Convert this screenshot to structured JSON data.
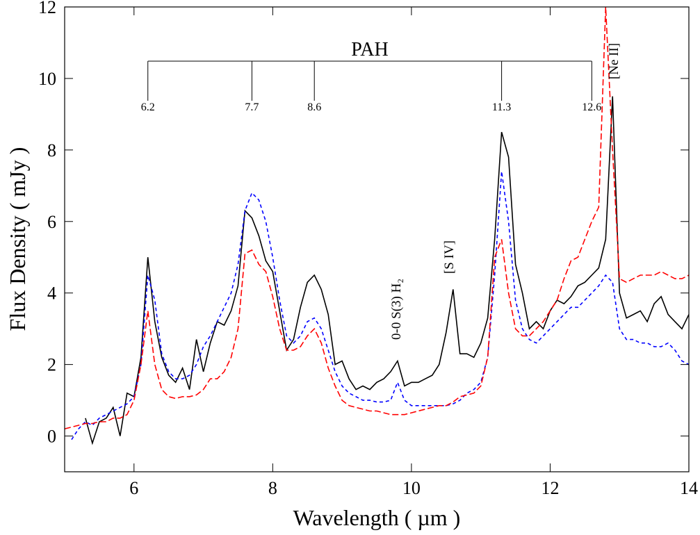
{
  "chart_data": {
    "type": "line",
    "xlabel": "Wavelength ( µm )",
    "ylabel": "Flux Density ( mJy )",
    "xlim": [
      5,
      14
    ],
    "ylim": [
      -1,
      12
    ],
    "xticks": [
      6,
      8,
      10,
      12,
      14
    ],
    "yticks": [
      0,
      2,
      4,
      6,
      8,
      10,
      12
    ],
    "pah_label": "PAH",
    "pah_features": [
      6.2,
      7.7,
      8.6,
      11.3,
      12.6
    ],
    "line_labels": [
      "[Ne II]",
      "[S IV]",
      "0-0 S(3) H₂"
    ],
    "x": [
      5.0,
      5.1,
      5.2,
      5.3,
      5.4,
      5.5,
      5.6,
      5.7,
      5.8,
      5.9,
      6.0,
      6.1,
      6.2,
      6.3,
      6.4,
      6.5,
      6.6,
      6.7,
      6.8,
      6.9,
      7.0,
      7.1,
      7.2,
      7.3,
      7.4,
      7.5,
      7.6,
      7.7,
      7.8,
      7.9,
      8.0,
      8.1,
      8.2,
      8.3,
      8.4,
      8.5,
      8.6,
      8.7,
      8.8,
      8.9,
      9.0,
      9.1,
      9.2,
      9.3,
      9.4,
      9.5,
      9.6,
      9.7,
      9.8,
      9.9,
      10.0,
      10.1,
      10.2,
      10.3,
      10.4,
      10.5,
      10.6,
      10.7,
      10.8,
      10.9,
      11.0,
      11.1,
      11.2,
      11.3,
      11.4,
      11.5,
      11.6,
      11.7,
      11.8,
      11.9,
      12.0,
      12.1,
      12.2,
      12.3,
      12.4,
      12.5,
      12.6,
      12.7,
      12.8,
      12.9,
      13.0,
      13.1,
      13.2,
      13.3,
      13.4,
      13.5,
      13.6,
      13.7,
      13.8,
      13.9,
      14.0
    ],
    "series": [
      {
        "color": "#000000",
        "linestyle": "solid",
        "values": [
          null,
          null,
          null,
          0.5,
          -0.2,
          0.4,
          0.5,
          0.8,
          0.0,
          1.2,
          1.1,
          2.2,
          5.0,
          3.2,
          2.2,
          1.7,
          1.5,
          1.9,
          1.3,
          2.7,
          1.8,
          2.6,
          3.2,
          3.1,
          3.5,
          4.2,
          6.3,
          6.1,
          5.6,
          4.9,
          4.6,
          3.5,
          2.4,
          2.7,
          3.6,
          4.3,
          4.5,
          4.1,
          3.4,
          2.0,
          2.1,
          1.6,
          1.3,
          1.4,
          1.3,
          1.5,
          1.6,
          1.8,
          2.1,
          1.4,
          1.5,
          1.5,
          1.6,
          1.7,
          2.0,
          2.9,
          4.1,
          2.3,
          2.3,
          2.2,
          2.6,
          3.3,
          5.5,
          8.5,
          7.8,
          4.8,
          4.0,
          3.0,
          3.2,
          3.0,
          3.5,
          3.8,
          3.7,
          3.9,
          4.2,
          4.3,
          4.5,
          4.7,
          5.5,
          9.5,
          4.0,
          3.3,
          3.4,
          3.5,
          3.2,
          3.7,
          3.9,
          3.4,
          3.2,
          3.0,
          3.4
        ]
      },
      {
        "color": "#0000ff",
        "linestyle": "dashed",
        "values": [
          null,
          -0.1,
          0.2,
          0.4,
          0.3,
          0.5,
          0.6,
          0.7,
          0.8,
          0.9,
          1.1,
          2.0,
          4.5,
          3.8,
          2.3,
          1.8,
          1.6,
          1.6,
          1.7,
          2.0,
          2.5,
          2.8,
          3.2,
          3.6,
          4.0,
          4.8,
          6.3,
          6.8,
          6.6,
          6.0,
          5.0,
          3.8,
          2.8,
          2.6,
          2.8,
          3.2,
          3.3,
          3.0,
          2.4,
          1.8,
          1.4,
          1.2,
          1.1,
          1.0,
          1.0,
          0.95,
          0.95,
          1.0,
          1.5,
          1.0,
          0.85,
          0.85,
          0.85,
          0.85,
          0.85,
          0.85,
          0.9,
          1.0,
          1.2,
          1.3,
          1.5,
          2.2,
          4.5,
          7.4,
          6.0,
          3.8,
          3.0,
          2.7,
          2.6,
          2.8,
          3.0,
          3.2,
          3.4,
          3.6,
          3.6,
          3.8,
          4.0,
          4.2,
          4.5,
          4.3,
          3.0,
          2.7,
          2.7,
          2.6,
          2.6,
          2.5,
          2.5,
          2.6,
          2.4,
          2.1,
          2.0
        ]
      },
      {
        "color": "#ff0000",
        "linestyle": "dashed",
        "values": [
          0.2,
          0.25,
          0.3,
          0.35,
          0.35,
          0.4,
          0.4,
          0.5,
          0.5,
          0.6,
          1.0,
          2.0,
          3.5,
          2.0,
          1.3,
          1.1,
          1.05,
          1.1,
          1.1,
          1.15,
          1.3,
          1.6,
          1.6,
          1.8,
          2.2,
          3.0,
          5.1,
          5.2,
          4.8,
          4.6,
          3.9,
          3.0,
          2.4,
          2.4,
          2.5,
          2.8,
          3.0,
          2.6,
          1.9,
          1.4,
          1.0,
          0.85,
          0.8,
          0.75,
          0.7,
          0.7,
          0.65,
          0.6,
          0.6,
          0.6,
          0.65,
          0.7,
          0.75,
          0.8,
          0.85,
          0.85,
          0.95,
          1.1,
          1.15,
          1.2,
          1.4,
          2.2,
          5.0,
          5.5,
          4.0,
          3.0,
          2.8,
          2.8,
          3.0,
          3.2,
          3.5,
          3.8,
          4.4,
          4.9,
          5.0,
          5.5,
          6.0,
          6.4,
          12,
          8.0,
          4.4,
          4.3,
          4.4,
          4.5,
          4.5,
          4.5,
          4.6,
          4.5,
          4.4,
          4.4,
          4.5
        ]
      }
    ]
  }
}
